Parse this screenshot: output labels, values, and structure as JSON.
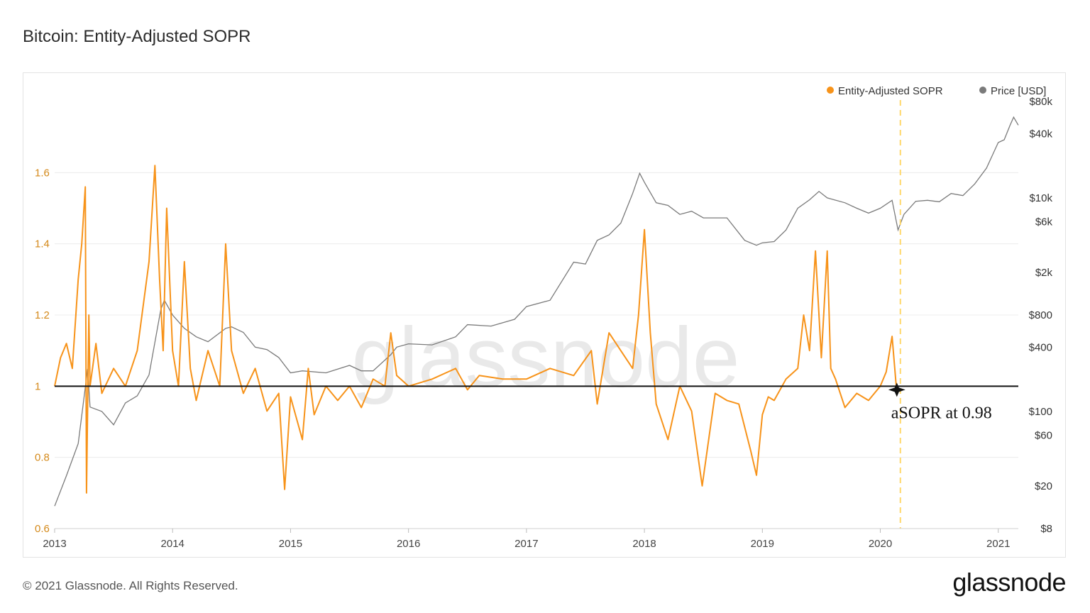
{
  "header": {
    "title": "Bitcoin: Entity-Adjusted SOPR"
  },
  "footer": {
    "copyright": "© 2021 Glassnode. All Rights Reserved.",
    "logo": "glassnode"
  },
  "watermark": "glassnode",
  "colors": {
    "sopr": "#f7931a",
    "price": "#7a7a7a",
    "grid": "#ececec",
    "left_axis_text": "#d4891a",
    "marker_line": "#ffd86b",
    "baseline": "#111111"
  },
  "chart_data": {
    "type": "line",
    "legend": [
      "Entity-Adjusted SOPR",
      "Price [USD]"
    ],
    "legend_position": "top-right",
    "grid": true,
    "x_ticks": [
      "2013",
      "2014",
      "2015",
      "2016",
      "2017",
      "2018",
      "2019",
      "2020",
      "2021"
    ],
    "x_range": [
      2013.0,
      2021.17
    ],
    "y_left": {
      "label": "",
      "range": [
        0.6,
        1.8
      ],
      "ticks": [
        "0.6",
        "0.8",
        "1",
        "1.2",
        "1.4",
        "1.6"
      ]
    },
    "y_right": {
      "label": "",
      "scale": "log",
      "range": [
        8,
        80000
      ],
      "ticks": [
        "$8",
        "$20",
        "$60",
        "$100",
        "$400",
        "$800",
        "$2k",
        "$6k",
        "$10k",
        "$40k",
        "$80k"
      ]
    },
    "reference_line": {
      "y": 1.0,
      "axis": "left"
    },
    "vertical_marker": {
      "x": 2020.17
    },
    "annotation": {
      "text": "aSOPR at 0.98",
      "x": 2020.14,
      "y": 0.99
    },
    "series": [
      {
        "name": "Entity-Adjusted SOPR",
        "axis": "left",
        "color": "#f7931a",
        "x": [
          2013.0,
          2013.05,
          2013.1,
          2013.15,
          2013.2,
          2013.23,
          2013.26,
          2013.27,
          2013.29,
          2013.3,
          2013.35,
          2013.4,
          2013.5,
          2013.6,
          2013.7,
          2013.8,
          2013.85,
          2013.89,
          2013.92,
          2013.95,
          2014.0,
          2014.05,
          2014.1,
          2014.15,
          2014.2,
          2014.3,
          2014.4,
          2014.45,
          2014.5,
          2014.6,
          2014.7,
          2014.8,
          2014.9,
          2014.95,
          2015.0,
          2015.1,
          2015.15,
          2015.2,
          2015.3,
          2015.4,
          2015.5,
          2015.6,
          2015.7,
          2015.8,
          2015.85,
          2015.9,
          2016.0,
          2016.2,
          2016.4,
          2016.5,
          2016.6,
          2016.8,
          2017.0,
          2017.2,
          2017.4,
          2017.55,
          2017.6,
          2017.7,
          2017.8,
          2017.9,
          2017.95,
          2018.0,
          2018.05,
          2018.1,
          2018.2,
          2018.3,
          2018.4,
          2018.49,
          2018.6,
          2018.7,
          2018.8,
          2018.9,
          2018.95,
          2019.0,
          2019.05,
          2019.1,
          2019.2,
          2019.3,
          2019.35,
          2019.4,
          2019.45,
          2019.5,
          2019.55,
          2019.58,
          2019.62,
          2019.7,
          2019.8,
          2019.9,
          2020.0,
          2020.05,
          2020.1,
          2020.14
        ],
        "values": [
          1.0,
          1.08,
          1.12,
          1.05,
          1.3,
          1.4,
          1.56,
          0.7,
          1.2,
          1.0,
          1.12,
          0.98,
          1.05,
          1.0,
          1.1,
          1.35,
          1.62,
          1.3,
          1.1,
          1.5,
          1.1,
          1.0,
          1.35,
          1.05,
          0.96,
          1.1,
          1.0,
          1.4,
          1.1,
          0.98,
          1.05,
          0.93,
          0.98,
          0.71,
          0.97,
          0.85,
          1.05,
          0.92,
          1.0,
          0.96,
          1.0,
          0.94,
          1.02,
          1.0,
          1.15,
          1.03,
          1.0,
          1.02,
          1.05,
          0.99,
          1.03,
          1.02,
          1.02,
          1.05,
          1.03,
          1.1,
          0.95,
          1.15,
          1.1,
          1.05,
          1.2,
          1.44,
          1.15,
          0.95,
          0.85,
          1.0,
          0.93,
          0.72,
          0.98,
          0.96,
          0.95,
          0.82,
          0.75,
          0.92,
          0.97,
          0.96,
          1.02,
          1.05,
          1.2,
          1.1,
          1.38,
          1.08,
          1.38,
          1.05,
          1.02,
          0.94,
          0.98,
          0.96,
          1.0,
          1.04,
          1.14,
          0.98
        ]
      },
      {
        "name": "Price [USD]",
        "axis": "right",
        "color": "#7a7a7a",
        "x": [
          2013.0,
          2013.1,
          2013.2,
          2013.28,
          2013.3,
          2013.4,
          2013.5,
          2013.6,
          2013.7,
          2013.8,
          2013.9,
          2013.93,
          2014.0,
          2014.1,
          2014.2,
          2014.3,
          2014.45,
          2014.5,
          2014.6,
          2014.7,
          2014.8,
          2014.9,
          2015.0,
          2015.1,
          2015.3,
          2015.5,
          2015.6,
          2015.7,
          2015.85,
          2015.9,
          2016.0,
          2016.2,
          2016.4,
          2016.5,
          2016.7,
          2016.9,
          2017.0,
          2017.2,
          2017.4,
          2017.5,
          2017.6,
          2017.7,
          2017.8,
          2017.9,
          2017.96,
          2018.0,
          2018.1,
          2018.2,
          2018.3,
          2018.4,
          2018.5,
          2018.6,
          2018.7,
          2018.85,
          2018.95,
          2019.0,
          2019.1,
          2019.2,
          2019.3,
          2019.4,
          2019.48,
          2019.55,
          2019.7,
          2019.8,
          2019.9,
          2020.0,
          2020.1,
          2020.15,
          2020.2,
          2020.3,
          2020.4,
          2020.5,
          2020.6,
          2020.7,
          2020.8,
          2020.9,
          2021.0,
          2021.05,
          2021.1,
          2021.13,
          2021.17
        ],
        "values": [
          13,
          25,
          50,
          250,
          110,
          100,
          75,
          120,
          140,
          220,
          900,
          1100,
          800,
          600,
          500,
          450,
          600,
          620,
          550,
          400,
          380,
          320,
          230,
          240,
          230,
          270,
          240,
          240,
          340,
          400,
          430,
          420,
          500,
          650,
          630,
          730,
          960,
          1100,
          2500,
          2400,
          4000,
          4500,
          5800,
          11000,
          17000,
          14000,
          9000,
          8500,
          7000,
          7500,
          6500,
          6500,
          6500,
          4000,
          3600,
          3800,
          3900,
          5000,
          8000,
          9600,
          11500,
          10000,
          9000,
          8000,
          7200,
          8000,
          9500,
          5000,
          7000,
          9300,
          9500,
          9200,
          11000,
          10500,
          13500,
          19000,
          33000,
          35000,
          48000,
          57000,
          48000
        ]
      }
    ]
  }
}
